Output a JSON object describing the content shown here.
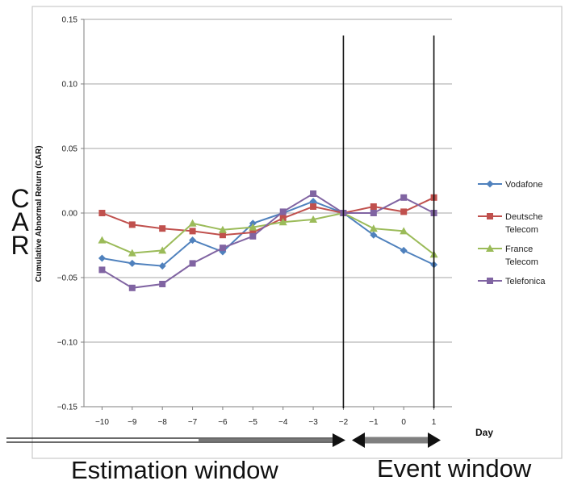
{
  "chart_data": {
    "type": "line",
    "title": "",
    "xlabel": "Day",
    "ylabel": "Cumulative Abnormal Return (CAR)",
    "x": [
      -10,
      -9,
      -8,
      -7,
      -6,
      -5,
      -4,
      -3,
      -2,
      -1,
      0,
      1
    ],
    "ylim": [
      -0.15,
      0.15
    ],
    "yticks": [
      0.15,
      0.1,
      0.05,
      0.0,
      -0.05,
      -0.1,
      -0.15
    ],
    "ytick_labels": [
      "0.15",
      "0.10",
      "0.05",
      "0.00",
      "−0.05",
      "−0.10",
      "−0.15"
    ],
    "xtick_labels": [
      "−10",
      "−9",
      "−8",
      "−7",
      "−6",
      "−5",
      "−4",
      "−3",
      "−2",
      "−1",
      "0",
      "1"
    ],
    "grid": "horizontal",
    "legend_position": "right",
    "vertical_lines_at": [
      -2,
      1
    ],
    "series": [
      {
        "name": "Vodafone",
        "color": "#4f81bd",
        "marker": "diamond",
        "values": [
          -0.035,
          -0.039,
          -0.041,
          -0.021,
          -0.03,
          -0.008,
          0.0,
          0.009,
          0.0,
          -0.017,
          -0.029,
          -0.04
        ]
      },
      {
        "name": "Deutsche Telecom",
        "color": "#c0504d",
        "marker": "square",
        "values": [
          0.0,
          -0.009,
          -0.012,
          -0.014,
          -0.017,
          -0.015,
          -0.004,
          0.005,
          0.0,
          0.005,
          0.001,
          0.012
        ]
      },
      {
        "name": "France Telecom",
        "color": "#9bbb59",
        "marker": "triangle",
        "values": [
          -0.021,
          -0.031,
          -0.029,
          -0.008,
          -0.013,
          -0.011,
          -0.007,
          -0.005,
          0.0,
          -0.012,
          -0.014,
          -0.032
        ]
      },
      {
        "name": "Telefonica",
        "color": "#8064a2",
        "marker": "square",
        "values": [
          -0.044,
          -0.058,
          -0.055,
          -0.039,
          -0.027,
          -0.018,
          0.001,
          0.015,
          0.0,
          0.0,
          0.012,
          0.0
        ]
      }
    ]
  },
  "annotations": {
    "car_letters": [
      "C",
      "A",
      "R"
    ],
    "estimation_window": "Estimation window",
    "event_window": "Event window"
  }
}
